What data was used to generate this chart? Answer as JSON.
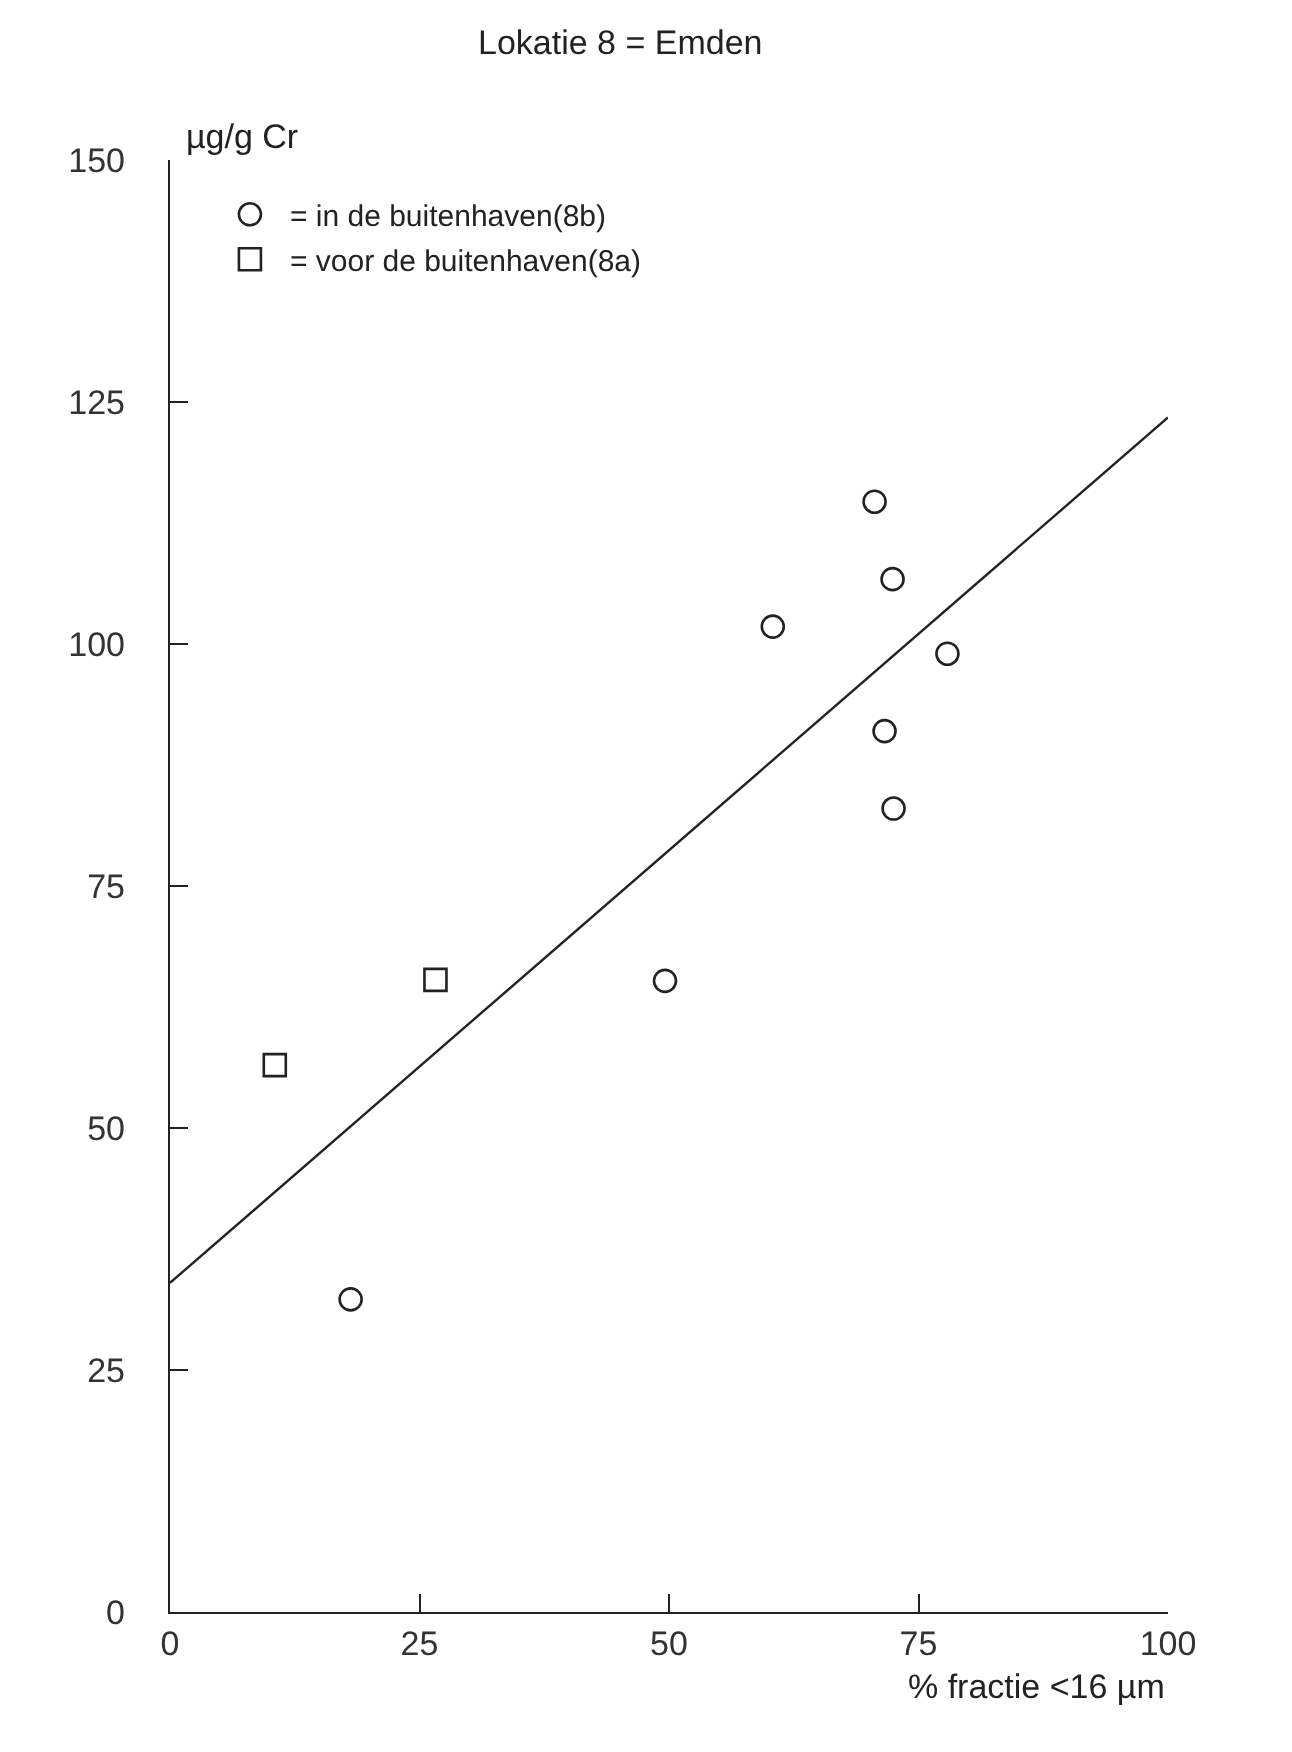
{
  "chart_data": {
    "type": "scatter",
    "title": "Lokatie 8 = Emden",
    "xlabel": "% fractie <16 µm",
    "ylabel": "µg/g Cr",
    "xlim": [
      0,
      100
    ],
    "ylim": [
      0,
      150
    ],
    "xticks": [
      0,
      25,
      50,
      75,
      100
    ],
    "yticks": [
      0,
      25,
      50,
      75,
      100,
      125,
      150
    ],
    "legend": "top left",
    "series": [
      {
        "name": "= in de buitenhaven(8b)",
        "color": "#222222",
        "marker": "circle",
        "x": [
          18.1,
          49.6,
          60.4,
          70.6,
          71.6,
          72.4,
          72.5,
          77.9
        ],
        "values": [
          32.3,
          65.2,
          101.8,
          114.7,
          91.0,
          106.7,
          83.0,
          99.0
        ]
      },
      {
        "name": "= voor de buitenhaven(8a)",
        "color": "#222222",
        "marker": "square",
        "x": [
          10.5,
          26.6
        ],
        "values": [
          56.5,
          65.3
        ]
      },
      {
        "type": "line",
        "color": "#222222",
        "marker": "none",
        "line_style": "solid",
        "x": [
          0,
          100
        ],
        "values": [
          34.0,
          123.4
        ]
      }
    ]
  }
}
